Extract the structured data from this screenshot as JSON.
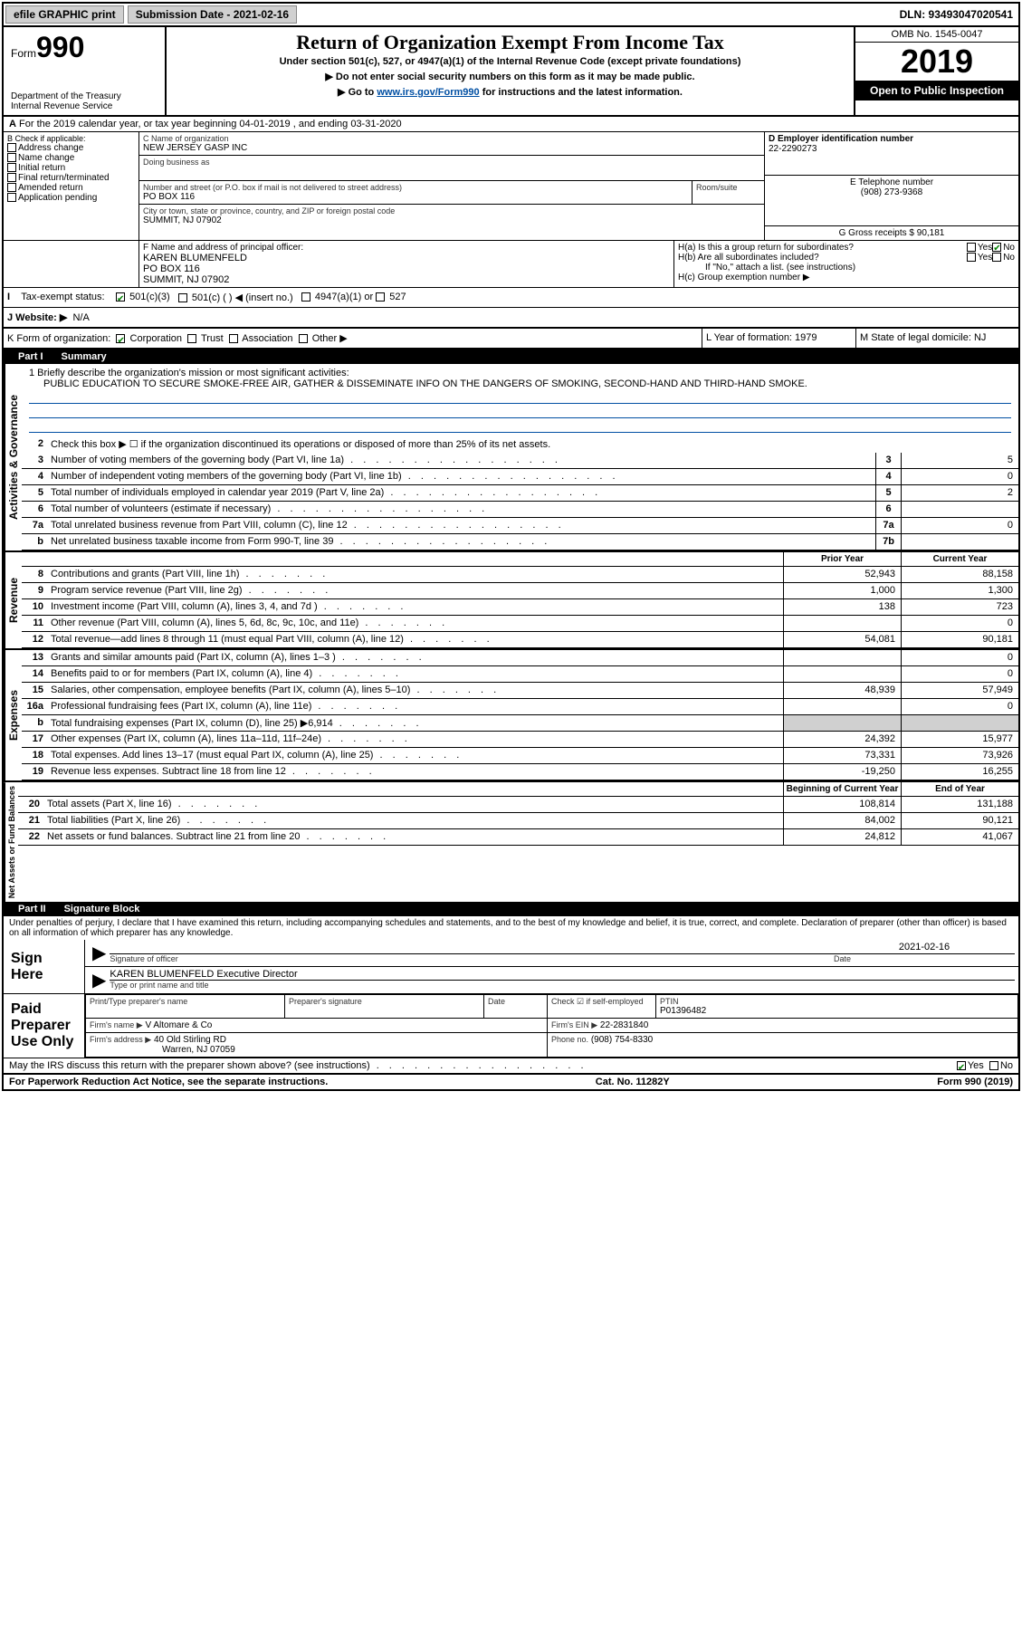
{
  "topbar": {
    "efile": "efile GRAPHIC print",
    "subdate_label": "Submission Date - 2021-02-16",
    "dln": "DLN: 93493047020541"
  },
  "header": {
    "form_word": "Form",
    "form_num": "990",
    "dept": "Department of the Treasury\nInternal Revenue Service",
    "title": "Return of Organization Exempt From Income Tax",
    "sub1": "Under section 501(c), 527, or 4947(a)(1) of the Internal Revenue Code (except private foundations)",
    "sub2": "▶ Do not enter social security numbers on this form as it may be made public.",
    "sub3_pre": "▶ Go to ",
    "sub3_link": "www.irs.gov/Form990",
    "sub3_post": " for instructions and the latest information.",
    "omb": "OMB No. 1545-0047",
    "year": "2019",
    "inspection": "Open to Public Inspection"
  },
  "periodA": "For the 2019 calendar year, or tax year beginning 04-01-2019     , and ending 03-31-2020",
  "checkB": {
    "label": "B Check if applicable:",
    "opts": [
      "Address change",
      "Name change",
      "Initial return",
      "Final return/terminated",
      "Amended return",
      "Application pending"
    ]
  },
  "blockC": {
    "label_name": "C Name of organization",
    "name": "NEW JERSEY GASP INC",
    "dba_label": "Doing business as",
    "addr_label": "Number and street (or P.O. box if mail is not delivered to street address)",
    "room_label": "Room/suite",
    "addr": "PO BOX 116",
    "city_label": "City or town, state or province, country, and ZIP or foreign postal code",
    "city": "SUMMIT, NJ  07902"
  },
  "blockD": {
    "label": "D Employer identification number",
    "val": "22-2290273"
  },
  "blockE": {
    "label": "E Telephone number",
    "val": "(908) 273-9368"
  },
  "blockG": {
    "label": "G Gross receipts $ 90,181"
  },
  "blockF": {
    "label": "F  Name and address of principal officer:",
    "lines": [
      "KAREN BLUMENFELD",
      "PO BOX 116",
      "SUMMIT, NJ  07902"
    ]
  },
  "blockH": {
    "a_label": "H(a)  Is this a group return for subordinates?",
    "b_label": "H(b)  Are all subordinates included?",
    "note": "If \"No,\" attach a list. (see instructions)",
    "c_label": "H(c)  Group exemption number ▶"
  },
  "taxexempt": {
    "label": "Tax-exempt status:",
    "opts": [
      "501(c)(3)",
      "501(c) (   ) ◀ (insert no.)",
      "4947(a)(1) or",
      "527"
    ]
  },
  "website": {
    "label": "J    Website: ▶",
    "val": "N/A"
  },
  "formK": {
    "label": "K Form of organization:",
    "opts": [
      "Corporation",
      "Trust",
      "Association",
      "Other ▶"
    ]
  },
  "blockL": "L Year of formation: 1979",
  "blockM": "M State of legal domicile: NJ",
  "part1": {
    "hdr": "Part I",
    "title": "Summary",
    "mission_label": "1  Briefly describe the organization's mission or most significant activities:",
    "mission": "PUBLIC EDUCATION TO SECURE SMOKE-FREE AIR, GATHER & DISSEMINATE INFO ON THE DANGERS OF SMOKING, SECOND-HAND AND THIRD-HAND SMOKE.",
    "line2": "Check this box ▶ ☐  if the organization discontinued its operations or disposed of more than 25% of its net assets.",
    "gov_label": "Activities & Governance",
    "rev_label": "Revenue",
    "exp_label": "Expenses",
    "net_label": "Net Assets or Fund Balances",
    "rows_gov": [
      {
        "n": "3",
        "d": "Number of voting members of the governing body (Part VI, line 1a)",
        "b": "3",
        "v": "5"
      },
      {
        "n": "4",
        "d": "Number of independent voting members of the governing body (Part VI, line 1b)",
        "b": "4",
        "v": "0"
      },
      {
        "n": "5",
        "d": "Total number of individuals employed in calendar year 2019 (Part V, line 2a)",
        "b": "5",
        "v": "2"
      },
      {
        "n": "6",
        "d": "Total number of volunteers (estimate if necessary)",
        "b": "6",
        "v": ""
      },
      {
        "n": "7a",
        "d": "Total unrelated business revenue from Part VIII, column (C), line 12",
        "b": "7a",
        "v": "0"
      },
      {
        "n": "b",
        "d": "Net unrelated business taxable income from Form 990-T, line 39",
        "b": "7b",
        "v": ""
      }
    ],
    "prior_hdr": "Prior Year",
    "current_hdr": "Current Year",
    "rows_rev": [
      {
        "n": "8",
        "d": "Contributions and grants (Part VIII, line 1h)",
        "py": "52,943",
        "cy": "88,158"
      },
      {
        "n": "9",
        "d": "Program service revenue (Part VIII, line 2g)",
        "py": "1,000",
        "cy": "1,300"
      },
      {
        "n": "10",
        "d": "Investment income (Part VIII, column (A), lines 3, 4, and 7d )",
        "py": "138",
        "cy": "723"
      },
      {
        "n": "11",
        "d": "Other revenue (Part VIII, column (A), lines 5, 6d, 8c, 9c, 10c, and 11e)",
        "py": "",
        "cy": "0"
      },
      {
        "n": "12",
        "d": "Total revenue—add lines 8 through 11 (must equal Part VIII, column (A), line 12)",
        "py": "54,081",
        "cy": "90,181"
      }
    ],
    "rows_exp": [
      {
        "n": "13",
        "d": "Grants and similar amounts paid (Part IX, column (A), lines 1–3 )",
        "py": "",
        "cy": "0"
      },
      {
        "n": "14",
        "d": "Benefits paid to or for members (Part IX, column (A), line 4)",
        "py": "",
        "cy": "0"
      },
      {
        "n": "15",
        "d": "Salaries, other compensation, employee benefits (Part IX, column (A), lines 5–10)",
        "py": "48,939",
        "cy": "57,949"
      },
      {
        "n": "16a",
        "d": "Professional fundraising fees (Part IX, column (A), line 11e)",
        "py": "",
        "cy": "0"
      },
      {
        "n": "b",
        "d": "Total fundraising expenses (Part IX, column (D), line 25) ▶6,914",
        "py": "GREY",
        "cy": "GREY"
      },
      {
        "n": "17",
        "d": "Other expenses (Part IX, column (A), lines 11a–11d, 11f–24e)",
        "py": "24,392",
        "cy": "15,977"
      },
      {
        "n": "18",
        "d": "Total expenses. Add lines 13–17 (must equal Part IX, column (A), line 25)",
        "py": "73,331",
        "cy": "73,926"
      },
      {
        "n": "19",
        "d": "Revenue less expenses. Subtract line 18 from line 12",
        "py": "-19,250",
        "cy": "16,255"
      }
    ],
    "begin_hdr": "Beginning of Current Year",
    "end_hdr": "End of Year",
    "rows_net": [
      {
        "n": "20",
        "d": "Total assets (Part X, line 16)",
        "py": "108,814",
        "cy": "131,188"
      },
      {
        "n": "21",
        "d": "Total liabilities (Part X, line 26)",
        "py": "84,002",
        "cy": "90,121"
      },
      {
        "n": "22",
        "d": "Net assets or fund balances. Subtract line 21 from line 20",
        "py": "24,812",
        "cy": "41,067"
      }
    ]
  },
  "part2": {
    "hdr": "Part II",
    "title": "Signature Block",
    "penalty": "Under penalties of perjury, I declare that I have examined this return, including accompanying schedules and statements, and to the best of my knowledge and belief, it is true, correct, and complete. Declaration of preparer (other than officer) is based on all information of which preparer has any knowledge.",
    "sign_here": "Sign Here",
    "sig_officer": "Signature of officer",
    "date_label": "Date",
    "date": "2021-02-16",
    "officer": "KAREN BLUMENFELD  Executive Director",
    "type_label": "Type or print name and title",
    "paid": "Paid Preparer Use Only",
    "prep_name_label": "Print/Type preparer's name",
    "prep_sig_label": "Preparer's signature",
    "check_label": "Check ☑ if self-employed",
    "ptin_label": "PTIN",
    "ptin": "P01396482",
    "firm_name_label": "Firm's name      ▶",
    "firm_name": "V Altomare & Co",
    "firm_ein_label": "Firm's EIN ▶",
    "firm_ein": "22-2831840",
    "firm_addr_label": "Firm's address ▶",
    "firm_addr1": "40 Old Stirling RD",
    "firm_addr2": "Warren, NJ  07059",
    "phone_label": "Phone no.",
    "phone": "(908) 754-8330",
    "discuss": "May the IRS discuss this return with the preparer shown above? (see instructions)"
  },
  "footer": {
    "left": "For Paperwork Reduction Act Notice, see the separate instructions.",
    "mid": "Cat. No. 11282Y",
    "right": "Form 990 (2019)"
  }
}
